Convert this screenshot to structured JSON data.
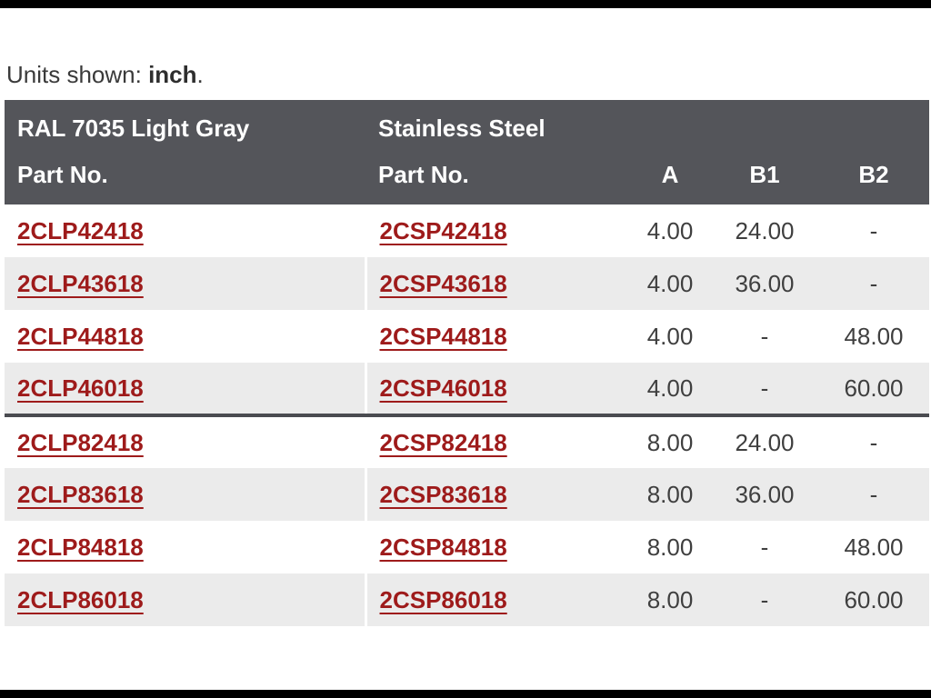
{
  "units": {
    "label": "Units shown:",
    "value": "inch",
    "suffix": "."
  },
  "table": {
    "header": {
      "gray_line1": "RAL 7035 Light Gray",
      "gray_line2": "Part No.",
      "ss_line1": "Stainless Steel",
      "ss_line2": "Part No.",
      "a": "A",
      "b1": "B1",
      "b2": "B2"
    },
    "rows": [
      {
        "gray": "2CLP42418",
        "ss": "2CSP42418",
        "a": "4.00",
        "b1": "24.00",
        "b2": "-"
      },
      {
        "gray": "2CLP43618",
        "ss": "2CSP43618",
        "a": "4.00",
        "b1": "36.00",
        "b2": "-"
      },
      {
        "gray": "2CLP44818",
        "ss": "2CSP44818",
        "a": "4.00",
        "b1": "-",
        "b2": "48.00"
      },
      {
        "gray": "2CLP46018",
        "ss": "2CSP46018",
        "a": "4.00",
        "b1": "-",
        "b2": "60.00"
      },
      {
        "gray": "2CLP82418",
        "ss": "2CSP82418",
        "a": "8.00",
        "b1": "24.00",
        "b2": "-"
      },
      {
        "gray": "2CLP83618",
        "ss": "2CSP83618",
        "a": "8.00",
        "b1": "36.00",
        "b2": "-"
      },
      {
        "gray": "2CLP84818",
        "ss": "2CSP84818",
        "a": "8.00",
        "b1": "-",
        "b2": "48.00"
      },
      {
        "gray": "2CLP86018",
        "ss": "2CSP86018",
        "a": "8.00",
        "b1": "-",
        "b2": "60.00"
      }
    ]
  },
  "colors": {
    "header_bg": "#54555a",
    "link_red": "#9e1b1b",
    "alt_row_bg": "#ebebeb",
    "group_divider": "#4a4b50",
    "value_text": "#3f3f3f"
  }
}
